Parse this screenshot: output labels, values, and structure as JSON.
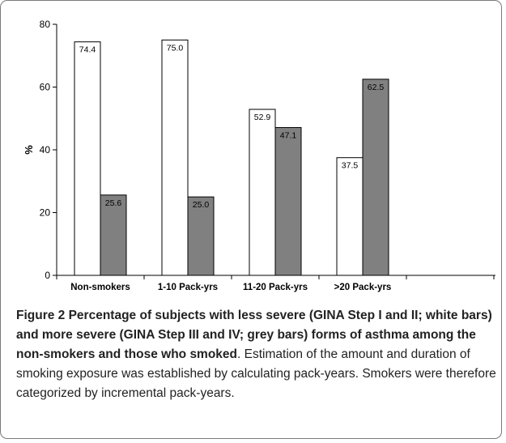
{
  "chart_data": {
    "type": "bar",
    "categories": [
      "Non-smokers",
      "1-10 Pack-yrs",
      "11-20 Pack-yrs",
      ">20 Pack-yrs"
    ],
    "series": [
      {
        "color": "#ffffff",
        "values": [
          74.4,
          75.0,
          52.9,
          37.5
        ],
        "labels": [
          "74.4",
          "75.0",
          "52.9",
          "37.5"
        ]
      },
      {
        "color": "#808080",
        "values": [
          25.6,
          25.0,
          47.1,
          62.5
        ],
        "labels": [
          "25.6",
          "25.0",
          "47.1",
          "62.5"
        ]
      }
    ],
    "ylabel": "%",
    "ylim": [
      0,
      80
    ],
    "yticks": [
      "0",
      "20",
      "40",
      "60",
      "80"
    ],
    "grid": false,
    "legend": "none"
  },
  "caption": {
    "title": "Figure 2 Percentage of subjects with less severe (GINA Step I and II; white bars) and more severe (GINA Step III and IV; grey bars) forms of asthma among the non-smokers and those who smoked",
    "body": ". Estimation of the amount and duration of smoking exposure was established by calculating pack-years. Smokers were therefore categorized by incremental pack-years."
  }
}
